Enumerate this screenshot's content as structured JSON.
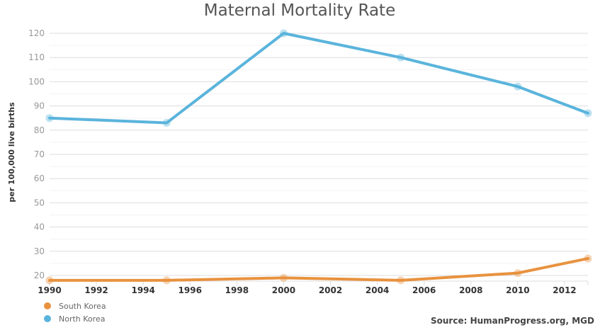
{
  "chart_data": {
    "type": "line",
    "title": "Maternal Mortality Rate",
    "xlabel": "",
    "ylabel": "per 100,000 live births",
    "xlim": [
      1990,
      2013
    ],
    "ylim": [
      17,
      123
    ],
    "yticks": [
      20,
      30,
      40,
      50,
      60,
      70,
      80,
      90,
      100,
      110,
      120
    ],
    "xticks": [
      1990,
      1992,
      1994,
      1996,
      1998,
      2000,
      2002,
      2004,
      2006,
      2008,
      2010,
      2012
    ],
    "grid": true,
    "legend_position": "bottom-left",
    "series": [
      {
        "name": "South Korea",
        "color": "#E8923F",
        "x": [
          1990,
          1995,
          2000,
          2005,
          2010,
          2013
        ],
        "values": [
          18,
          18,
          19,
          18,
          21,
          27
        ]
      },
      {
        "name": "North Korea",
        "color": "#5AB4DC",
        "x": [
          1990,
          1995,
          2000,
          2005,
          2010,
          2013
        ],
        "values": [
          85,
          83,
          120,
          110,
          98,
          87
        ]
      }
    ],
    "source": "Source: HumanProgress.org, MGD"
  }
}
